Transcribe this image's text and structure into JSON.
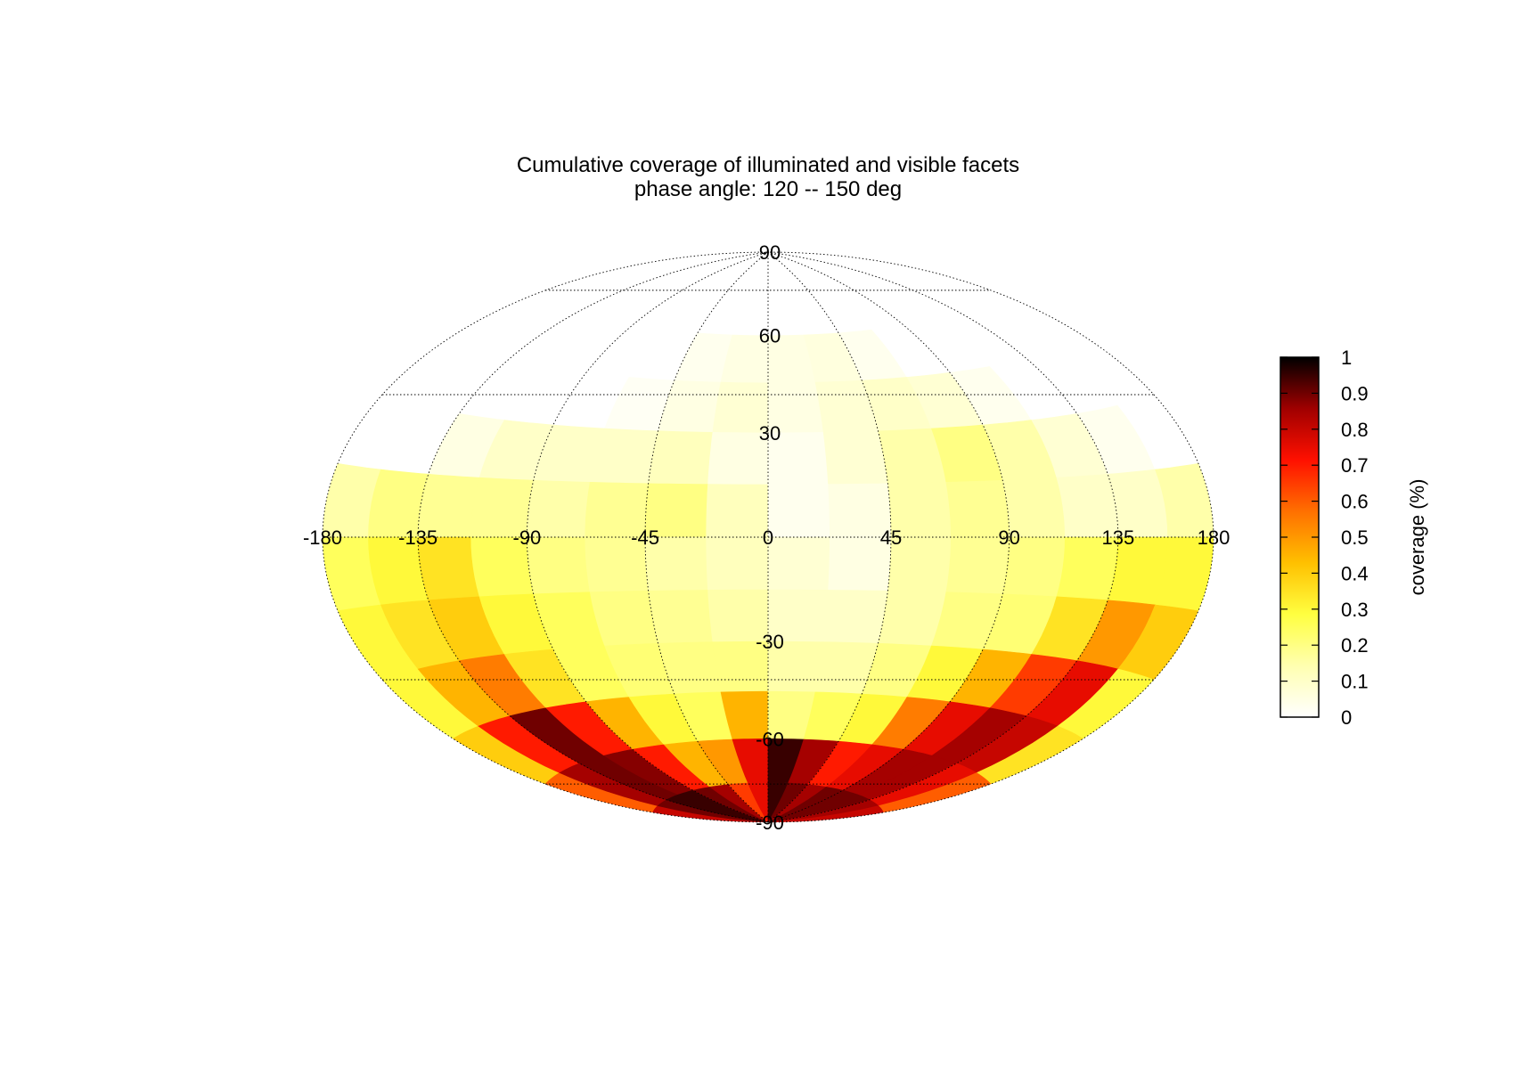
{
  "chart_data": {
    "type": "heatmap",
    "projection": "hammer-aitoff",
    "title_lines": [
      "Cumulative coverage of illuminated and visible facets",
      "phase angle: 120 -- 150 deg"
    ],
    "lon_ticks": [
      -180,
      -135,
      -90,
      -45,
      0,
      45,
      90,
      135,
      180
    ],
    "lat_ticks": [
      90,
      60,
      30,
      -30,
      -60,
      -90
    ],
    "colorbar": {
      "label": "coverage (%)",
      "range": [
        0,
        1
      ],
      "ticks": [
        0,
        0.1,
        0.2,
        0.3,
        0.4,
        0.5,
        0.6,
        0.7,
        0.8,
        0.9,
        1
      ],
      "colormap": "hot",
      "stops": [
        "#ffffff",
        "#ffffb0",
        "#ffff40",
        "#ffc000",
        "#ff7000",
        "#ff1000",
        "#a00000",
        "#000000"
      ]
    },
    "grid": true,
    "lon_bands": [
      -180,
      -157.5,
      -135,
      -112.5,
      -90,
      -67.5,
      -45,
      -22.5,
      0,
      22.5,
      45,
      67.5,
      90,
      112.5,
      135,
      157.5,
      180
    ],
    "lat_bands": [
      90,
      60,
      45,
      30,
      15,
      0,
      -15,
      -30,
      -45,
      -60,
      -75,
      -90
    ],
    "values": [
      [
        0,
        0,
        0,
        0,
        0,
        0,
        0,
        0,
        0,
        0,
        0,
        0,
        0,
        0,
        0,
        0
      ],
      [
        0,
        0,
        0,
        0,
        0,
        0,
        0.03,
        0.05,
        0.05,
        0.06,
        0.03,
        0,
        0,
        0,
        0,
        0
      ],
      [
        0,
        0,
        0,
        0,
        0,
        0.02,
        0.05,
        0.08,
        0.05,
        0.08,
        0.1,
        0.08,
        0.03,
        0,
        0,
        0
      ],
      [
        0,
        0,
        0.05,
        0.1,
        0.1,
        0.1,
        0.12,
        0.05,
        0.03,
        0.08,
        0.15,
        0.2,
        0.15,
        0.08,
        0.03,
        0
      ],
      [
        0.15,
        0.2,
        0.18,
        0.18,
        0.15,
        0.18,
        0.2,
        0.12,
        0.03,
        0.05,
        0.15,
        0.18,
        0.15,
        0.1,
        0.1,
        0.15
      ],
      [
        0.25,
        0.3,
        0.35,
        0.25,
        0.2,
        0.18,
        0.15,
        0.12,
        0.08,
        0.05,
        0.15,
        0.18,
        0.2,
        0.25,
        0.3,
        0.3
      ],
      [
        0.3,
        0.35,
        0.4,
        0.3,
        0.25,
        0.2,
        0.18,
        0.15,
        0.1,
        0.1,
        0.15,
        0.2,
        0.22,
        0.35,
        0.5,
        0.4
      ],
      [
        0.3,
        0.45,
        0.55,
        0.35,
        0.25,
        0.22,
        0.2,
        0.2,
        0.15,
        0.15,
        0.2,
        0.3,
        0.45,
        0.65,
        0.75,
        0.3
      ],
      [
        0.4,
        0.7,
        0.9,
        0.7,
        0.45,
        0.3,
        0.25,
        0.45,
        0.2,
        0.25,
        0.3,
        0.55,
        0.75,
        0.85,
        0.8,
        0.35
      ],
      [
        0.6,
        0.85,
        0.9,
        0.88,
        0.7,
        0.45,
        0.5,
        0.75,
        0.95,
        0.85,
        0.7,
        0.75,
        0.85,
        0.85,
        0.75,
        0.6
      ],
      [
        0.8,
        0.9,
        0.95,
        0.95,
        0.9,
        0.85,
        0.65,
        0.75,
        0.95,
        0.9,
        0.85,
        0.9,
        0.9,
        0.9,
        0.85,
        0.8
      ]
    ]
  }
}
